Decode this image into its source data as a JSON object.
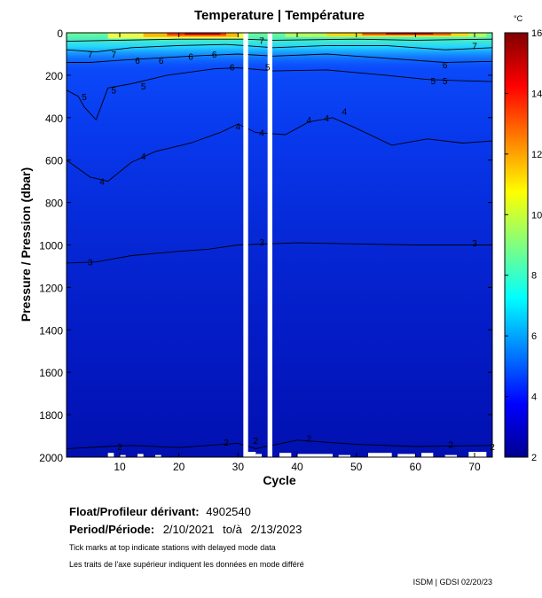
{
  "chart_data": {
    "type": "heatmap",
    "title": "Temperature | Température",
    "xlabel": "Cycle",
    "ylabel": "Pressure / Pression (dbar)",
    "xlim": [
      1,
      73
    ],
    "ylim": [
      2000,
      0
    ],
    "x_ticks": [
      10,
      20,
      30,
      40,
      50,
      60,
      70
    ],
    "y_ticks": [
      0,
      200,
      400,
      600,
      800,
      1000,
      1200,
      1400,
      1600,
      1800,
      2000
    ],
    "colorbar": {
      "unit": "°C",
      "min": 2,
      "max": 16,
      "ticks": [
        2,
        4,
        6,
        8,
        10,
        12,
        14,
        16
      ],
      "colormap": "jet"
    },
    "missing_cycles": [
      [
        30.9,
        31.7
      ],
      [
        35.0,
        35.8
      ]
    ],
    "contour_labels": [
      {
        "text": "2",
        "cycle": 10,
        "pressure": 1950
      },
      {
        "text": "2",
        "cycle": 28,
        "pressure": 1930
      },
      {
        "text": "2",
        "cycle": 33,
        "pressure": 1920
      },
      {
        "text": "2",
        "cycle": 42,
        "pressure": 1910
      },
      {
        "text": "2",
        "cycle": 66,
        "pressure": 1940
      },
      {
        "text": "2",
        "cycle": 73,
        "pressure": 1950
      },
      {
        "text": "3",
        "cycle": 5,
        "pressure": 1080
      },
      {
        "text": "3",
        "cycle": 34,
        "pressure": 985
      },
      {
        "text": "3",
        "cycle": 70,
        "pressure": 990
      },
      {
        "text": "4",
        "cycle": 7,
        "pressure": 700
      },
      {
        "text": "4",
        "cycle": 14,
        "pressure": 580
      },
      {
        "text": "4",
        "cycle": 30,
        "pressure": 440
      },
      {
        "text": "4",
        "cycle": 34,
        "pressure": 470
      },
      {
        "text": "4",
        "cycle": 42,
        "pressure": 410
      },
      {
        "text": "4",
        "cycle": 45,
        "pressure": 400
      },
      {
        "text": "4",
        "cycle": 48,
        "pressure": 370
      },
      {
        "text": "5",
        "cycle": 4,
        "pressure": 300
      },
      {
        "text": "5",
        "cycle": 9,
        "pressure": 270
      },
      {
        "text": "5",
        "cycle": 14,
        "pressure": 250
      },
      {
        "text": "5",
        "cycle": 35,
        "pressure": 160
      },
      {
        "text": "5",
        "cycle": 63,
        "pressure": 225
      },
      {
        "text": "5",
        "cycle": 65,
        "pressure": 225
      },
      {
        "text": "6",
        "cycle": 13,
        "pressure": 130
      },
      {
        "text": "6",
        "cycle": 17,
        "pressure": 130
      },
      {
        "text": "6",
        "cycle": 22,
        "pressure": 110
      },
      {
        "text": "6",
        "cycle": 26,
        "pressure": 100
      },
      {
        "text": "6",
        "cycle": 29,
        "pressure": 160
      },
      {
        "text": "6",
        "cycle": 65,
        "pressure": 150
      },
      {
        "text": "7",
        "cycle": 5,
        "pressure": 100
      },
      {
        "text": "7",
        "cycle": 9,
        "pressure": 100
      },
      {
        "text": "7",
        "cycle": 34,
        "pressure": 35
      },
      {
        "text": "7",
        "cycle": 70,
        "pressure": 60
      }
    ]
  },
  "info": {
    "float_label": "Float/Profileur dérivant:",
    "float_id": "4902540",
    "period_label": "Period/Période:",
    "period_start": "2/10/2021",
    "period_to": "to/à",
    "period_end": "2/13/2023",
    "note_en": "Tick marks at top indicate stations with delayed mode data",
    "note_fr": "Les traits de l'axe supérieur indiquent les données en mode différé",
    "credit": "ISDM | GDSI  02/20/23"
  },
  "colors": {
    "background": "#ffffff",
    "colormap": "jet",
    "contour_line": "#000000"
  }
}
